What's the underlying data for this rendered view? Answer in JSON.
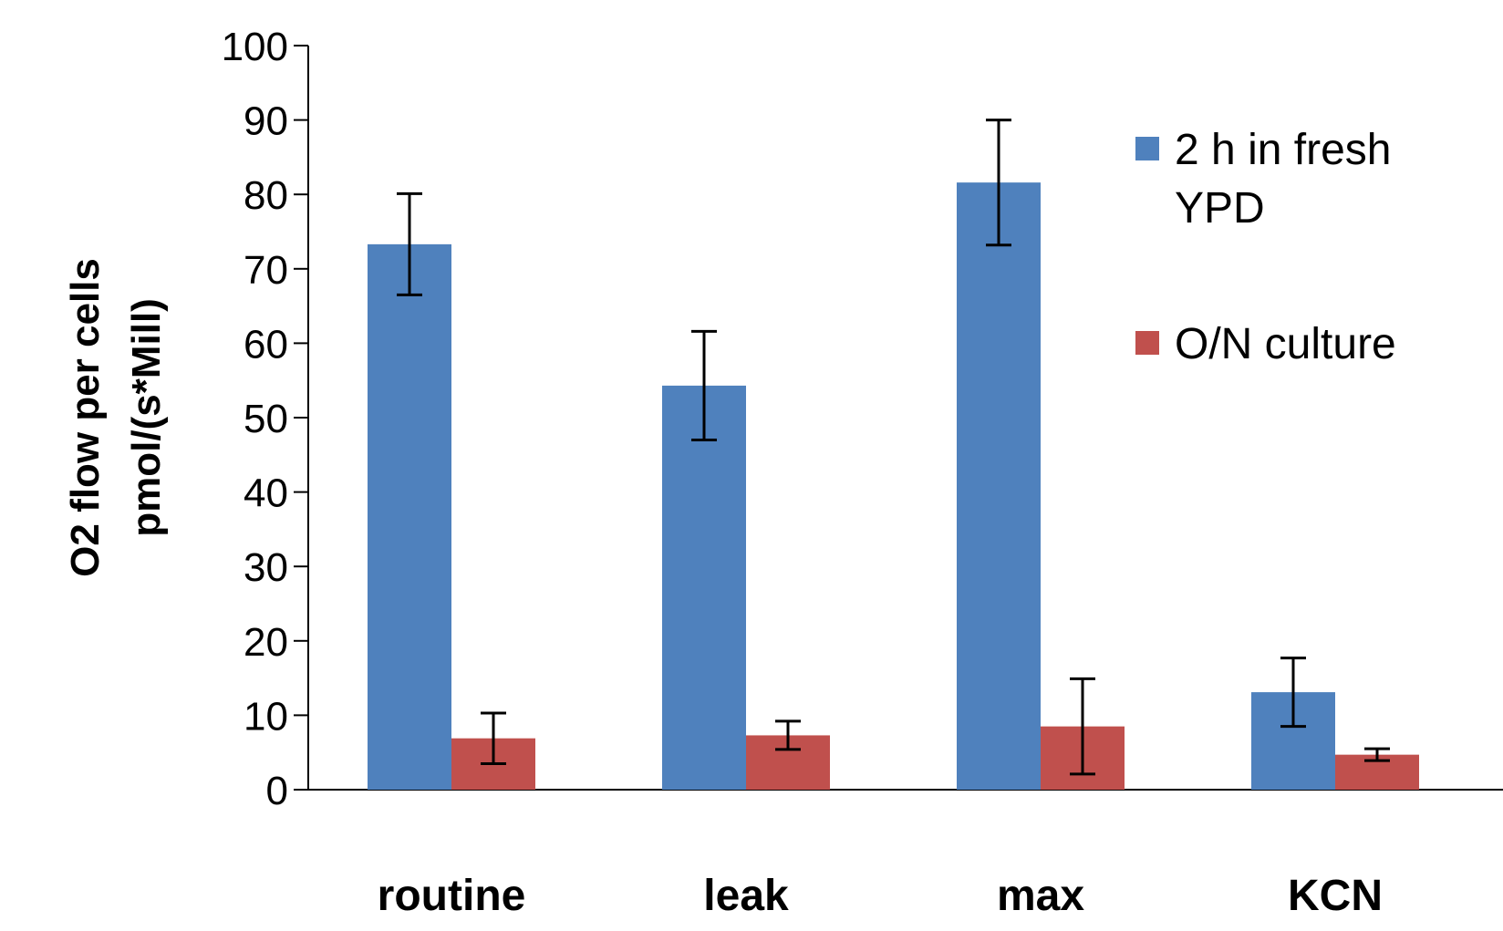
{
  "chart_data": {
    "type": "bar",
    "categories": [
      "routine",
      "leak",
      "max",
      "KCN"
    ],
    "series": [
      {
        "name": "2 h in fresh YPD",
        "name_lines": [
          "2 h in fresh",
          "YPD"
        ],
        "color": "#4F81BD",
        "values": [
          73.3,
          54.3,
          81.6,
          13.1
        ],
        "errors": [
          6.8,
          7.3,
          8.4,
          4.6
        ]
      },
      {
        "name": "O/N culture",
        "name_lines": [
          "O/N culture"
        ],
        "color": "#C0504D",
        "values": [
          6.9,
          7.3,
          8.5,
          4.7
        ],
        "errors": [
          3.4,
          1.9,
          6.4,
          0.8
        ]
      }
    ],
    "ylabel_lines": [
      "O2 flow  per cells",
      "pmol/(s*Mill)"
    ],
    "xlabel": "",
    "ylim": [
      0,
      100
    ],
    "yticks": [
      0,
      10,
      20,
      30,
      40,
      50,
      60,
      70,
      80,
      90,
      100
    ],
    "grid": false,
    "legend_position": "right"
  }
}
